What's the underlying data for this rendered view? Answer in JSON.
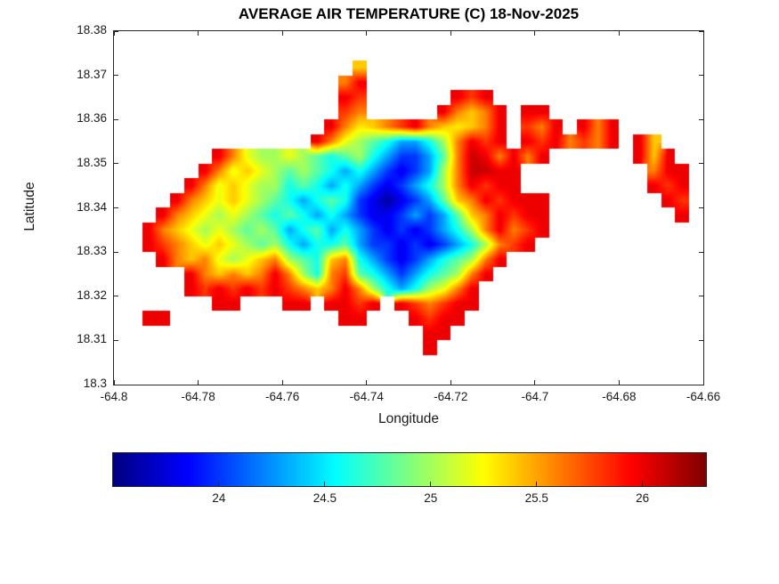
{
  "chart_data": {
    "type": "heatmap",
    "title": "AVERAGE AIR TEMPERATURE (C) 18-Nov-2025",
    "xlabel": "Longitude",
    "ylabel": "Latitude",
    "xlim": [
      -64.8,
      -64.66
    ],
    "ylim": [
      18.3,
      18.38
    ],
    "x_tick_labels": [
      "-64.8",
      "-64.78",
      "-64.76",
      "-64.74",
      "-64.72",
      "-64.7",
      "-64.68",
      "-64.66"
    ],
    "y_tick_labels": [
      "18.3",
      "18.31",
      "18.32",
      "18.33",
      "18.34",
      "18.35",
      "18.36",
      "18.37",
      "18.38"
    ],
    "colormap": "jet",
    "clim": [
      23.5,
      26.3
    ],
    "colorbar": {
      "orientation": "horizontal",
      "tick_labels": [
        "24",
        "24.5",
        "25",
        "25.5",
        "26"
      ]
    },
    "grid": {
      "comment": "Temperature field (deg C) over the island, row 0 = lat 18.38 (top). One char per cell; '.' = no data (sea). value = base_value + (charCode-97)*step",
      "cols": 42,
      "rows": 24,
      "lon_start": -64.8,
      "lon_step": 0.0033333,
      "lat_start": 18.38,
      "lat_step": -0.0033333,
      "encoding": {
        "null_char": ".",
        "base_char": "a",
        "base_value": 23.6,
        "step": 0.1
      },
      "rows_encoded": [
        "",
        "",
        ".................s",
        "................uy",
        "................yw......ywy",
        "................wu.....yusuy.yy",
        "...............yursuwyusrsuy.wuy.yuy",
        "..............yuqomkhhkouywy.ywyuwuy.ys",
        ".......yuqooqomkmokheehmuzyuyuy......ysy",
        "......yuqsqomomkhkhecehouzzyy.........uyy",
        ".....yuqsqookmkhkhecehkouywyy.........ywy",
        "....yusqsqomkhkmkecacehmsuywyyy........yw",
        "...yusqoqomkmkhkheccehehmsuywyy.........y",
        "..yusqoqomomhkmhkhececehkouyuwy",
        "..ywusqsqomokhkkmheececehkouwy",
        "...yusuqoqsuomksukhecehkmouy",
        ".....yususuyuokuwmkhehkmouy",
        ".....ywywywywusuyuokhkoquy",
        ".......yy...yy.yywy.ywuwyy",
        "..yy............yy...ywyy",
        "......................yy",
        "......................y",
        "",
        ""
      ]
    }
  }
}
